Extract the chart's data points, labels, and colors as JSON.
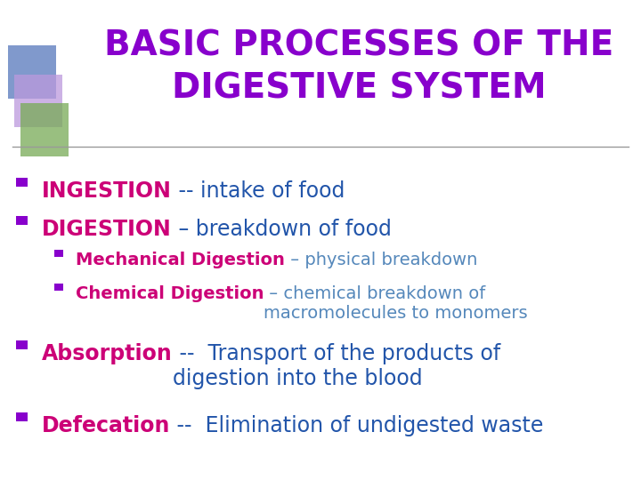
{
  "title_line1": "BASIC PROCESSES OF THE",
  "title_line2": "DIGESTIVE SYSTEM",
  "title_color": "#8800CC",
  "background_color": "#FFFFFF",
  "bullet_square_color": "#8800CC",
  "sub_bullet_square_color": "#8800CC",
  "items": [
    {
      "level": 1,
      "bold_text": "INGESTION",
      "bold_color": "#CC0077",
      "rest_text": " -- intake of food",
      "rest_color": "#2255AA"
    },
    {
      "level": 1,
      "bold_text": "DIGESTION",
      "bold_color": "#CC0077",
      "rest_text": " – breakdown of food",
      "rest_color": "#2255AA"
    },
    {
      "level": 2,
      "bold_text": "Mechanical Digestion",
      "bold_color": "#CC0077",
      "rest_text": " – physical breakdown",
      "rest_color": "#5588BB"
    },
    {
      "level": 2,
      "bold_text": "Chemical Digestion",
      "bold_color": "#CC0077",
      "rest_text": " – chemical breakdown of\nmacromolecules to monomers",
      "rest_color": "#5588BB"
    },
    {
      "level": 1,
      "bold_text": "Absorption",
      "bold_color": "#CC0077",
      "rest_text": " --  Transport of the products of\ndigestion into the blood",
      "rest_color": "#2255AA"
    },
    {
      "level": 1,
      "bold_text": "Defecation",
      "bold_color": "#CC0077",
      "rest_text": " --  Elimination of undigested waste",
      "rest_color": "#2255AA"
    }
  ],
  "decorator_blue": "#5577BB",
  "decorator_purple": "#BB99DD",
  "decorator_green": "#77AA55",
  "line_color": "#999999"
}
